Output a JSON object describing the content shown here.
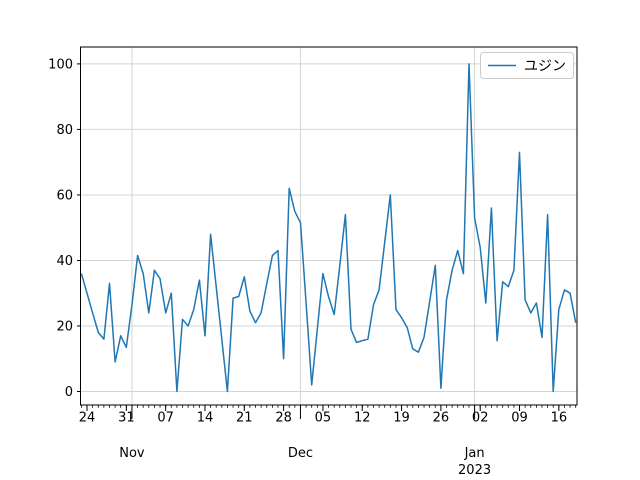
{
  "figure": {
    "background": "#ffffff"
  },
  "chart_data": {
    "type": "line",
    "title": "",
    "xlabel": "",
    "ylabel": "",
    "x_start": "2022-10-23",
    "x_freq": "daily",
    "n_points": 89,
    "series": [
      {
        "name": "ユジン",
        "color": "#1f77b4",
        "line_width": 1.5,
        "values": [
          36,
          30,
          24,
          18,
          16,
          33,
          9,
          17,
          13.5,
          26.5,
          41.5,
          36,
          24,
          37,
          34.5,
          24,
          30,
          0,
          22,
          20,
          25,
          34,
          17,
          48,
          32,
          16,
          0,
          28.5,
          29,
          35,
          24.5,
          21,
          24,
          33,
          41.5,
          43,
          10,
          62,
          55,
          51.5,
          27,
          2,
          19,
          36,
          29,
          23.5,
          38.5,
          54,
          19,
          15,
          15.5,
          16,
          26.5,
          31,
          45.5,
          60,
          25,
          22.5,
          19.5,
          13,
          12,
          16.5,
          27.5,
          38.5,
          1,
          28,
          37,
          43,
          36,
          100,
          53,
          44,
          27,
          56,
          15.5,
          33.5,
          32,
          37,
          73,
          28,
          24,
          27,
          16.5,
          54,
          0,
          25,
          31,
          30,
          21
        ]
      }
    ],
    "ylim": [
      -5,
      105
    ],
    "yticks": [
      0,
      20,
      40,
      60,
      80,
      100
    ],
    "x_week_ticks": [
      {
        "day": 1,
        "label": "24"
      },
      {
        "day": 8,
        "label": "31"
      },
      {
        "day": 15,
        "label": "07"
      },
      {
        "day": 22,
        "label": "14"
      },
      {
        "day": 29,
        "label": "21"
      },
      {
        "day": 36,
        "label": "28"
      },
      {
        "day": 43,
        "label": "05"
      },
      {
        "day": 50,
        "label": "12"
      },
      {
        "day": 57,
        "label": "19"
      },
      {
        "day": 64,
        "label": "26"
      },
      {
        "day": 71,
        "label": "02"
      },
      {
        "day": 78,
        "label": "09"
      },
      {
        "day": 85,
        "label": "16"
      }
    ],
    "x_month_ticks": [
      {
        "day": 9,
        "label": "Nov",
        "year_label": ""
      },
      {
        "day": 39,
        "label": "Dec",
        "year_label": ""
      },
      {
        "day": 70,
        "label": "Jan",
        "year_label": "2023"
      }
    ],
    "grid": {
      "show": true,
      "color": "#d4d4d4"
    },
    "legend": {
      "position": "upper right",
      "entries": [
        "ユジン"
      ]
    },
    "axes": {
      "spine_color": "#000000",
      "tick_color": "#000000",
      "text_color": "#000000"
    }
  }
}
